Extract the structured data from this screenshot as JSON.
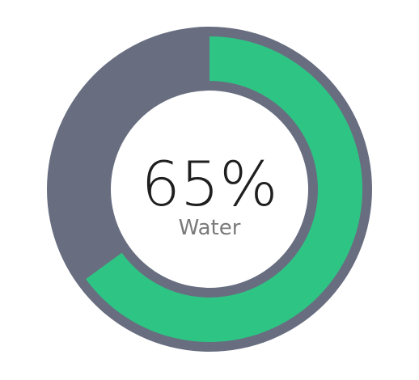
{
  "chart_data": {
    "type": "pie",
    "variant": "donut-gauge",
    "value": 65,
    "max": 100,
    "value_label": "65%",
    "label": "Water",
    "start_angle_deg": 0,
    "direction": "clockwise"
  },
  "colors": {
    "track": "#686e80",
    "progress": "#2ec584",
    "center_fill": "#ffffff",
    "value_text": "#1f1f1f",
    "label_text": "#7a7a7a"
  }
}
